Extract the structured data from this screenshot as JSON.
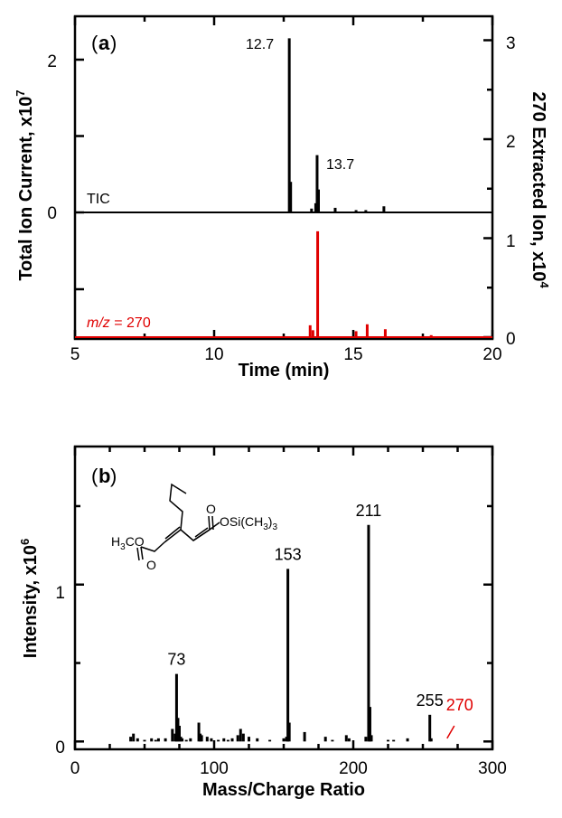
{
  "chart_data": [
    {
      "type": "line",
      "panel_label": "a",
      "xlabel": "Time (min)",
      "xlim": [
        5,
        20
      ],
      "xticks": [
        5,
        10,
        15,
        20
      ],
      "ylabel_left": "Total Ion Current, x10",
      "ylabel_left_exp": "7",
      "ylabel_right": "270 Extracted Ion, x10",
      "ylabel_right_exp": "4",
      "left_ticks": [
        "0",
        "2"
      ],
      "right_ticks": [
        "3",
        "2",
        "1",
        "0"
      ],
      "series": [
        {
          "name": "TIC",
          "color": "#000000",
          "unit_scale": "x10^7",
          "baseline": 0,
          "peaks": [
            [
              10.0,
              0.01
            ],
            [
              11.3,
              0.01
            ],
            [
              12.7,
              2.28
            ],
            [
              12.75,
              0.4
            ],
            [
              13.5,
              0.05
            ],
            [
              13.65,
              0.12
            ],
            [
              13.7,
              0.75
            ],
            [
              13.75,
              0.3
            ],
            [
              14.35,
              0.06
            ],
            [
              15.1,
              0.03
            ],
            [
              15.45,
              0.03
            ],
            [
              16.1,
              0.08
            ],
            [
              17.9,
              0.01
            ]
          ]
        },
        {
          "name": "m/z = 270",
          "color": "#e00000",
          "unit_scale": "x10^4",
          "baseline": 0,
          "peaks": [
            [
              13.45,
              0.12
            ],
            [
              13.55,
              0.07
            ],
            [
              13.72,
              1.07
            ],
            [
              15.1,
              0.06
            ],
            [
              15.5,
              0.13
            ],
            [
              16.15,
              0.08
            ],
            [
              17.8,
              0.02
            ]
          ]
        }
      ],
      "annotations": [
        {
          "text": "12.7",
          "x": 12.7,
          "series": "TIC"
        },
        {
          "text": "13.7",
          "x": 13.7,
          "series": "TIC"
        },
        {
          "text": "TIC",
          "series": "TIC"
        },
        {
          "text_italic": "m/z",
          "text": " = 270",
          "color": "#e00000",
          "series": "m/z = 270"
        }
      ]
    },
    {
      "type": "bar",
      "panel_label": "b",
      "xlabel": "Mass/Charge Ratio",
      "ylabel": "Intensity, x10",
      "ylabel_exp": "6",
      "xlim": [
        0,
        300
      ],
      "ylim": [
        -0.05,
        1.88
      ],
      "xticks": [
        0,
        100,
        200,
        300
      ],
      "yticks": [
        0,
        1
      ],
      "unit_scale": "x10^6",
      "x": [
        40,
        42,
        45,
        50,
        55,
        58,
        60,
        65,
        70,
        72,
        73,
        74,
        75,
        76,
        77,
        80,
        83,
        89,
        90,
        91,
        95,
        98,
        103,
        107,
        110,
        113,
        117,
        119,
        121,
        125,
        131,
        140,
        150,
        152,
        153,
        154,
        165,
        180,
        185,
        195,
        197,
        209,
        211,
        212,
        213,
        225,
        229,
        239,
        255,
        256
      ],
      "values": [
        0.03,
        0.05,
        0.02,
        0.01,
        0.02,
        0.01,
        0.02,
        0.02,
        0.08,
        0.05,
        0.43,
        0.15,
        0.1,
        0.03,
        0.02,
        0.01,
        0.02,
        0.12,
        0.05,
        0.04,
        0.03,
        0.02,
        0.01,
        0.02,
        0.01,
        0.02,
        0.04,
        0.08,
        0.05,
        0.03,
        0.02,
        0.01,
        0.02,
        0.03,
        1.1,
        0.12,
        0.06,
        0.03,
        0.01,
        0.04,
        0.02,
        0.03,
        1.38,
        0.22,
        0.04,
        0.01,
        0.01,
        0.02,
        0.17,
        0.02
      ],
      "annotations": [
        {
          "text": "73",
          "x": 73
        },
        {
          "text": "153",
          "x": 153
        },
        {
          "text": "211",
          "x": 211
        },
        {
          "text": "255",
          "x": 255
        },
        {
          "text": "270",
          "x": 270,
          "color": "#e00000"
        }
      ],
      "structure_labels": {
        "ester_left": "H",
        "ester_left_sub": "3",
        "ester_left_rest": "CO",
        "oxygen": "O",
        "silyl": "OSi(CH",
        "silyl_sub": "3",
        "silyl_close": ")",
        "silyl_close_sub": "3"
      }
    }
  ]
}
